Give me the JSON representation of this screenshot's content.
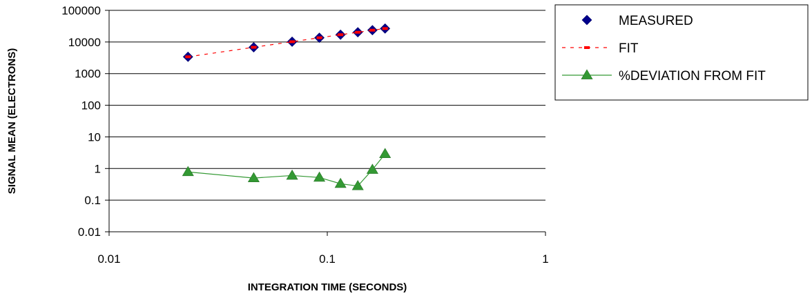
{
  "chart_data": {
    "type": "scatter",
    "xlabel": "INTEGRATION TIME (SECONDS)",
    "ylabel": "SIGNAL MEAN (ELECTRONS)",
    "x_scale": "log",
    "y_scale": "log",
    "xlim": [
      0.01,
      1
    ],
    "ylim": [
      0.01,
      100000
    ],
    "x_ticks": [
      {
        "value": 0.01,
        "label": "0.01"
      },
      {
        "value": 0.1,
        "label": "0.1"
      },
      {
        "value": 1,
        "label": "1"
      }
    ],
    "y_ticks": [
      {
        "value": 100000,
        "label": "100000"
      },
      {
        "value": 10000,
        "label": "10000"
      },
      {
        "value": 1000,
        "label": "1000"
      },
      {
        "value": 100,
        "label": "100"
      },
      {
        "value": 10,
        "label": "10"
      },
      {
        "value": 1,
        "label": "1"
      },
      {
        "value": 0.1,
        "label": "0.1"
      },
      {
        "value": 0.01,
        "label": "0.01"
      }
    ],
    "grid": "horizontal major lines",
    "legend_position": "right",
    "series": [
      {
        "name": "MEASURED",
        "marker": "diamond",
        "line": "none",
        "color": "#00008B",
        "x": [
          0.023,
          0.046,
          0.069,
          0.092,
          0.115,
          0.138,
          0.161,
          0.184
        ],
        "y": [
          3400,
          6800,
          10200,
          13600,
          17000,
          20300,
          23600,
          26600
        ]
      },
      {
        "name": "FIT",
        "marker": "dash",
        "line": "dashed",
        "color": "#FF0000",
        "x": [
          0.023,
          0.046,
          0.069,
          0.092,
          0.115,
          0.138,
          0.161,
          0.184
        ],
        "y": [
          3400,
          6800,
          10200,
          13600,
          17000,
          20300,
          23600,
          26600
        ]
      },
      {
        "name": "%DEVIATION FROM FIT",
        "marker": "triangle",
        "line": "solid",
        "color": "#339933",
        "x": [
          0.023,
          0.046,
          0.069,
          0.092,
          0.115,
          0.138,
          0.161,
          0.184
        ],
        "y": [
          0.78,
          0.5,
          0.6,
          0.52,
          0.33,
          0.28,
          0.92,
          2.9
        ]
      }
    ]
  }
}
